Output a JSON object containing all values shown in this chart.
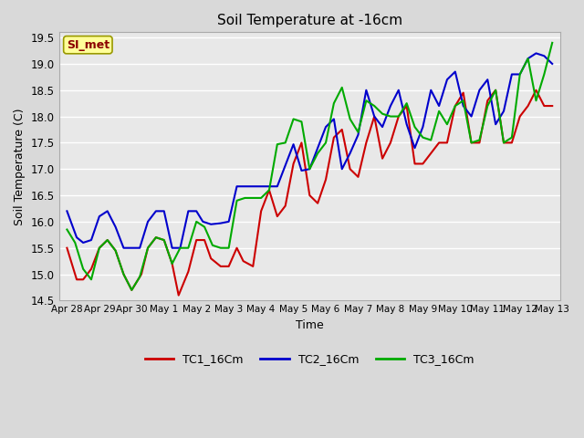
{
  "title": "Soil Temperature at -16cm",
  "xlabel": "Time",
  "ylabel": "Soil Temperature (C)",
  "ylim": [
    14.5,
    19.6
  ],
  "xlim": [
    -0.25,
    15.25
  ],
  "plot_bg_color": "#e8e8e8",
  "grid_color": "#ffffff",
  "watermark": "SI_met",
  "series": {
    "TC1_16Cm": {
      "color": "#cc0000",
      "x": [
        0,
        0.3,
        0.5,
        0.75,
        1.0,
        1.25,
        1.5,
        1.75,
        2.0,
        2.3,
        2.5,
        2.75,
        3.0,
        3.25,
        3.45,
        3.75,
        4.0,
        4.25,
        4.45,
        4.75,
        5.0,
        5.25,
        5.45,
        5.75,
        6.0,
        6.25,
        6.5,
        6.75,
        7.0,
        7.25,
        7.5,
        7.75,
        8.0,
        8.25,
        8.5,
        8.75,
        9.0,
        9.25,
        9.5,
        9.75,
        10.0,
        10.25,
        10.5,
        10.75,
        11.0,
        11.25,
        11.5,
        11.75,
        12.0,
        12.25,
        12.5,
        12.75,
        13.0,
        13.25,
        13.5,
        13.75,
        14.0,
        14.25,
        14.5,
        14.75,
        15.0
      ],
      "y": [
        15.5,
        14.9,
        14.9,
        15.1,
        15.5,
        15.65,
        15.45,
        15.0,
        14.7,
        15.0,
        15.5,
        15.7,
        15.65,
        15.2,
        14.6,
        15.05,
        15.65,
        15.65,
        15.3,
        15.15,
        15.15,
        15.5,
        15.25,
        15.15,
        16.2,
        16.6,
        16.1,
        16.3,
        17.1,
        17.5,
        16.5,
        16.35,
        16.8,
        17.6,
        17.75,
        17.0,
        16.85,
        17.5,
        18.0,
        17.2,
        17.5,
        18.0,
        18.2,
        17.1,
        17.1,
        17.3,
        17.5,
        17.5,
        18.2,
        18.45,
        17.5,
        17.5,
        18.3,
        18.5,
        17.5,
        17.5,
        18.0,
        18.2,
        18.5,
        18.2,
        18.2
      ]
    },
    "TC2_16Cm": {
      "color": "#0000cc",
      "x": [
        0,
        0.3,
        0.5,
        0.75,
        1.0,
        1.25,
        1.5,
        1.75,
        2.0,
        2.25,
        2.5,
        2.75,
        3.0,
        3.25,
        3.5,
        3.75,
        4.0,
        4.2,
        4.45,
        4.75,
        5.0,
        5.25,
        5.5,
        6.0,
        6.5,
        7.0,
        7.25,
        7.5,
        8.0,
        8.25,
        8.5,
        8.75,
        9.0,
        9.25,
        9.5,
        9.75,
        10.0,
        10.25,
        10.5,
        10.75,
        11.0,
        11.25,
        11.5,
        11.75,
        12.0,
        12.25,
        12.5,
        12.75,
        13.0,
        13.25,
        13.5,
        13.75,
        14.0,
        14.25,
        14.5,
        14.75,
        15.0
      ],
      "y": [
        16.2,
        15.7,
        15.6,
        15.65,
        16.1,
        16.2,
        15.9,
        15.5,
        15.5,
        15.5,
        16.0,
        16.2,
        16.2,
        15.5,
        15.5,
        16.2,
        16.2,
        16.0,
        15.95,
        15.97,
        16.0,
        16.67,
        16.67,
        16.67,
        16.67,
        17.47,
        16.97,
        17.0,
        17.8,
        17.95,
        17.0,
        17.3,
        17.65,
        18.5,
        18.0,
        17.8,
        18.2,
        18.5,
        17.85,
        17.4,
        17.8,
        18.5,
        18.2,
        18.7,
        18.85,
        18.2,
        18.0,
        18.5,
        18.7,
        17.85,
        18.1,
        18.8,
        18.8,
        19.1,
        19.2,
        19.15,
        19.0
      ]
    },
    "TC3_16Cm": {
      "color": "#00aa00",
      "x": [
        0,
        0.25,
        0.5,
        0.75,
        1.0,
        1.25,
        1.5,
        1.75,
        2.0,
        2.25,
        2.5,
        2.75,
        3.0,
        3.25,
        3.5,
        3.75,
        4.0,
        4.25,
        4.5,
        4.75,
        5.0,
        5.25,
        5.5,
        5.75,
        6.0,
        6.25,
        6.5,
        6.75,
        7.0,
        7.25,
        7.5,
        7.75,
        8.0,
        8.25,
        8.5,
        8.75,
        9.0,
        9.25,
        9.5,
        9.75,
        10.0,
        10.25,
        10.5,
        10.75,
        11.0,
        11.25,
        11.5,
        11.75,
        12.0,
        12.25,
        12.5,
        12.75,
        13.0,
        13.25,
        13.5,
        13.75,
        14.0,
        14.25,
        14.5,
        14.75,
        15.0
      ],
      "y": [
        15.85,
        15.6,
        15.1,
        14.9,
        15.5,
        15.65,
        15.45,
        15.0,
        14.7,
        14.95,
        15.5,
        15.7,
        15.65,
        15.2,
        15.5,
        15.5,
        16.0,
        15.9,
        15.55,
        15.5,
        15.5,
        16.4,
        16.45,
        16.45,
        16.45,
        16.6,
        17.47,
        17.5,
        17.95,
        17.9,
        17.0,
        17.3,
        17.5,
        18.25,
        18.55,
        17.95,
        17.7,
        18.3,
        18.2,
        18.05,
        18.0,
        18.0,
        18.25,
        17.8,
        17.6,
        17.55,
        18.1,
        17.85,
        18.2,
        18.3,
        17.5,
        17.55,
        18.2,
        18.5,
        17.5,
        17.6,
        18.8,
        19.1,
        18.3,
        18.8,
        19.4
      ]
    }
  },
  "xtick_positions": [
    0,
    1,
    2,
    3,
    4,
    5,
    6,
    7,
    8,
    9,
    10,
    11,
    12,
    13,
    14,
    15
  ],
  "xtick_labels": [
    "Apr 28",
    "Apr 29",
    "Apr 30",
    "May 1",
    "May 2",
    "May 3",
    "May 4",
    "May 5",
    "May 6",
    "May 7",
    "May 8",
    "May 9",
    "May 10",
    "May 11",
    "May 12",
    "May 13"
  ],
  "ytick_positions": [
    14.5,
    15.0,
    15.5,
    16.0,
    16.5,
    17.0,
    17.5,
    18.0,
    18.5,
    19.0,
    19.5
  ],
  "legend_labels": [
    "TC1_16Cm",
    "TC2_16Cm",
    "TC3_16Cm"
  ],
  "legend_colors": [
    "#cc0000",
    "#0000cc",
    "#00aa00"
  ],
  "figsize": [
    6.4,
    4.8
  ],
  "dpi": 100
}
